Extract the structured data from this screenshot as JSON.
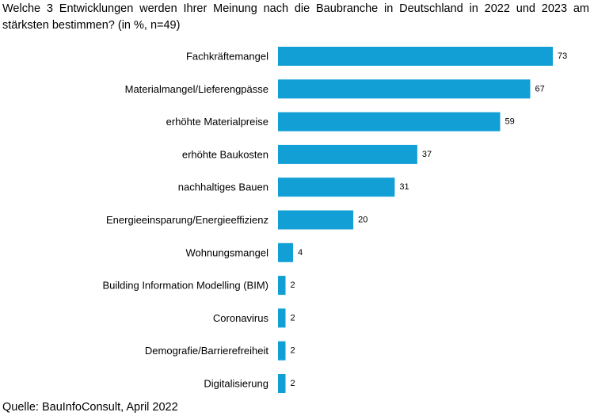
{
  "chart_data": {
    "type": "bar",
    "orientation": "horizontal",
    "title": "Welche 3 Entwicklungen werden Ihrer Meinung nach die Baubranche in Deutschland in 2022 und 2023 am stärksten bestimmen? (in %, n=49)",
    "xlabel": "",
    "ylabel": "",
    "grid": false,
    "bar_color": "#129fd6",
    "categories": [
      "Fachkräftemangel",
      "Materialmangel/Lieferengpässe",
      "erhöhte Materialpreise",
      "erhöhte Baukosten",
      "nachhaltiges Bauen",
      "Energieeinsparung/Energieeffizienz",
      "Wohnungsmangel",
      "Building Information Modelling (BIM)",
      "Coronavirus",
      "Demografie/Barrierefreiheit",
      "Digitalisierung"
    ],
    "values": [
      73,
      67,
      59,
      37,
      31,
      20,
      4,
      2,
      2,
      2,
      2
    ],
    "xlim": [
      0,
      73
    ]
  },
  "source": "Quelle: BauInfoConsult, April 2022"
}
